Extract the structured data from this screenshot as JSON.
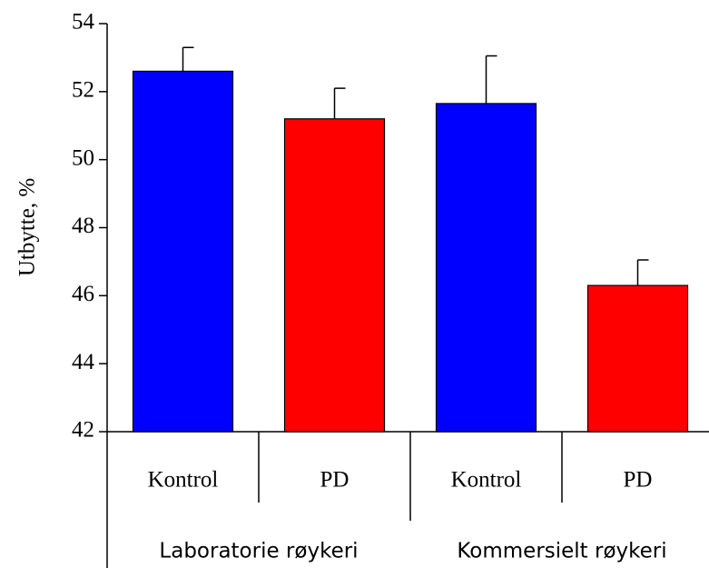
{
  "chart_data": {
    "type": "bar",
    "y_label": "Utbytte, %",
    "categories": [
      "Kontrol",
      "PD",
      "Kontrol",
      "PD"
    ],
    "groups": [
      "Laboratorie røykeri",
      "Kommersielt røykeri"
    ],
    "values": [
      52.6,
      51.2,
      51.65,
      46.3
    ],
    "errors": [
      0.7,
      0.9,
      1.4,
      0.75
    ],
    "colors": [
      "#0000ff",
      "#ff0000",
      "#0000ff",
      "#ff0000"
    ],
    "ylim": [
      42,
      54
    ],
    "yticks": [
      42,
      44,
      46,
      48,
      50,
      52,
      54
    ],
    "grid": false
  }
}
